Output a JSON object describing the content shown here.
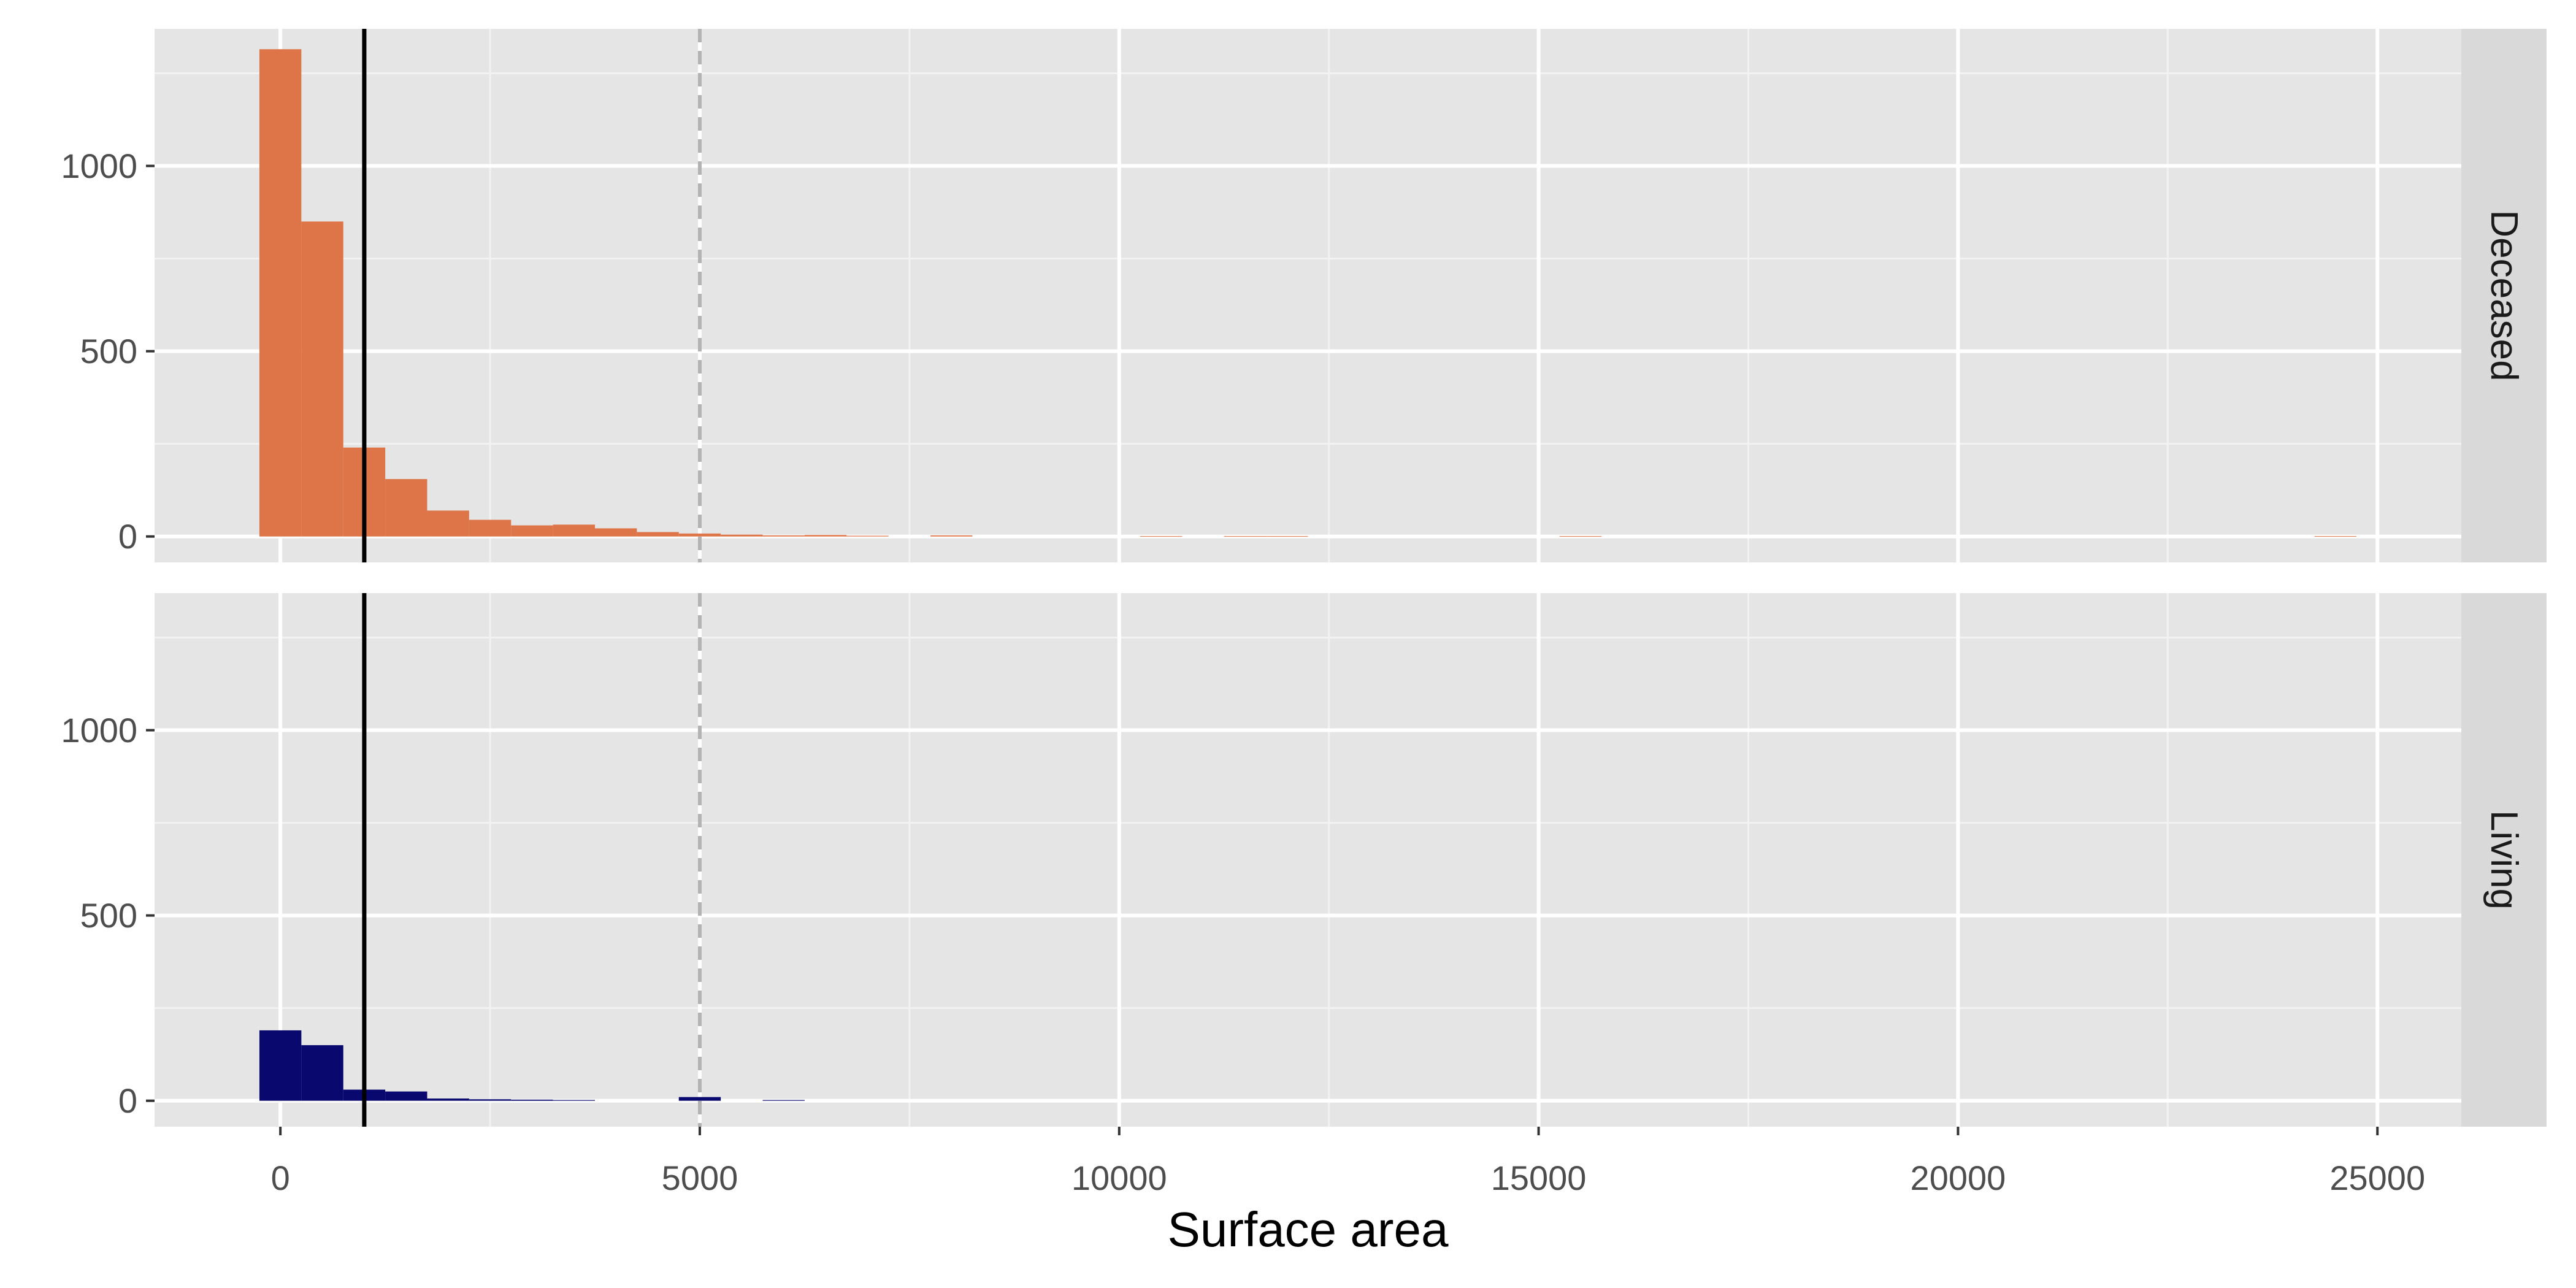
{
  "chart_data": {
    "type": "bar",
    "xlabel": "Surface area",
    "ylabel": "",
    "xlim": [
      -1500,
      26000
    ],
    "ylim": [
      -70,
      1370
    ],
    "x_ticks": [
      0,
      5000,
      10000,
      15000,
      20000,
      25000
    ],
    "y_ticks": [
      0,
      500,
      1000
    ],
    "bin_width": 500,
    "reference_lines": [
      {
        "x": 1000,
        "style": "solid",
        "color": "#000000"
      },
      {
        "x": 5000,
        "style": "dashed",
        "color": "#b3b3b3"
      }
    ],
    "grid": true,
    "facets": [
      {
        "label": "Deceased",
        "color": "#DE7548",
        "bins": [
          {
            "x": 0,
            "count": 1315
          },
          {
            "x": 500,
            "count": 850
          },
          {
            "x": 1000,
            "count": 240
          },
          {
            "x": 1500,
            "count": 155
          },
          {
            "x": 2000,
            "count": 70
          },
          {
            "x": 2500,
            "count": 45
          },
          {
            "x": 3000,
            "count": 30
          },
          {
            "x": 3500,
            "count": 32
          },
          {
            "x": 4000,
            "count": 22
          },
          {
            "x": 4500,
            "count": 12
          },
          {
            "x": 5000,
            "count": 8
          },
          {
            "x": 5500,
            "count": 5
          },
          {
            "x": 6000,
            "count": 3
          },
          {
            "x": 6500,
            "count": 4
          },
          {
            "x": 7000,
            "count": 2
          },
          {
            "x": 8000,
            "count": 3
          },
          {
            "x": 10500,
            "count": 1
          },
          {
            "x": 11500,
            "count": 1
          },
          {
            "x": 12000,
            "count": 1
          },
          {
            "x": 15500,
            "count": 1
          },
          {
            "x": 24500,
            "count": 1
          }
        ]
      },
      {
        "label": "Living",
        "color": "#08086E",
        "bins": [
          {
            "x": 0,
            "count": 190
          },
          {
            "x": 500,
            "count": 150
          },
          {
            "x": 1000,
            "count": 30
          },
          {
            "x": 1500,
            "count": 25
          },
          {
            "x": 2000,
            "count": 6
          },
          {
            "x": 2500,
            "count": 4
          },
          {
            "x": 3000,
            "count": 3
          },
          {
            "x": 3500,
            "count": 2
          },
          {
            "x": 5000,
            "count": 10
          },
          {
            "x": 6000,
            "count": 2
          }
        ]
      }
    ]
  }
}
